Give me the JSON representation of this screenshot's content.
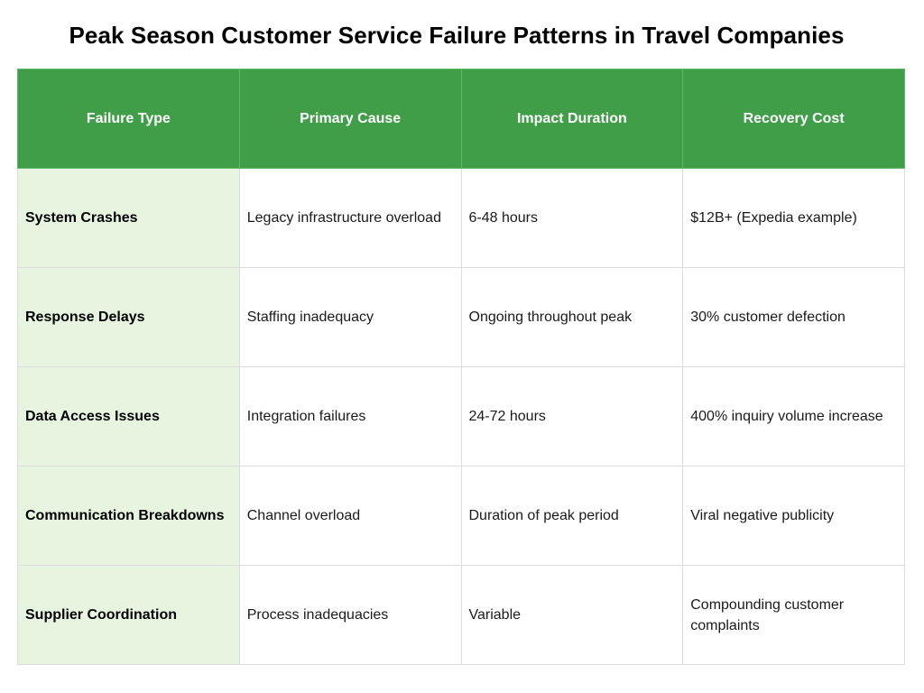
{
  "title": "Peak Season Customer Service Failure Patterns in Travel Companies",
  "colors": {
    "header_bg": "#3f9e47",
    "header_text": "#ffffff",
    "first_col_bg": "#e7f4e0",
    "border": "#dcdcdc"
  },
  "table": {
    "headers": [
      "Failure Type",
      "Primary Cause",
      "Impact Duration",
      "Recovery Cost"
    ],
    "rows": [
      [
        "System Crashes",
        "Legacy infrastructure overload",
        "6-48 hours",
        "$12B+ (Expedia example)"
      ],
      [
        "Response Delays",
        "Staffing inadequacy",
        "Ongoing throughout peak",
        "30% customer defection"
      ],
      [
        "Data Access Issues",
        "Integration failures",
        "24-72 hours",
        "400% inquiry volume increase"
      ],
      [
        "Communication Breakdowns",
        "Channel overload",
        "Duration of peak period",
        "Viral negative publicity"
      ],
      [
        "Supplier Coordination",
        "Process inadequacies",
        "Variable",
        "Compounding customer complaints"
      ]
    ]
  }
}
